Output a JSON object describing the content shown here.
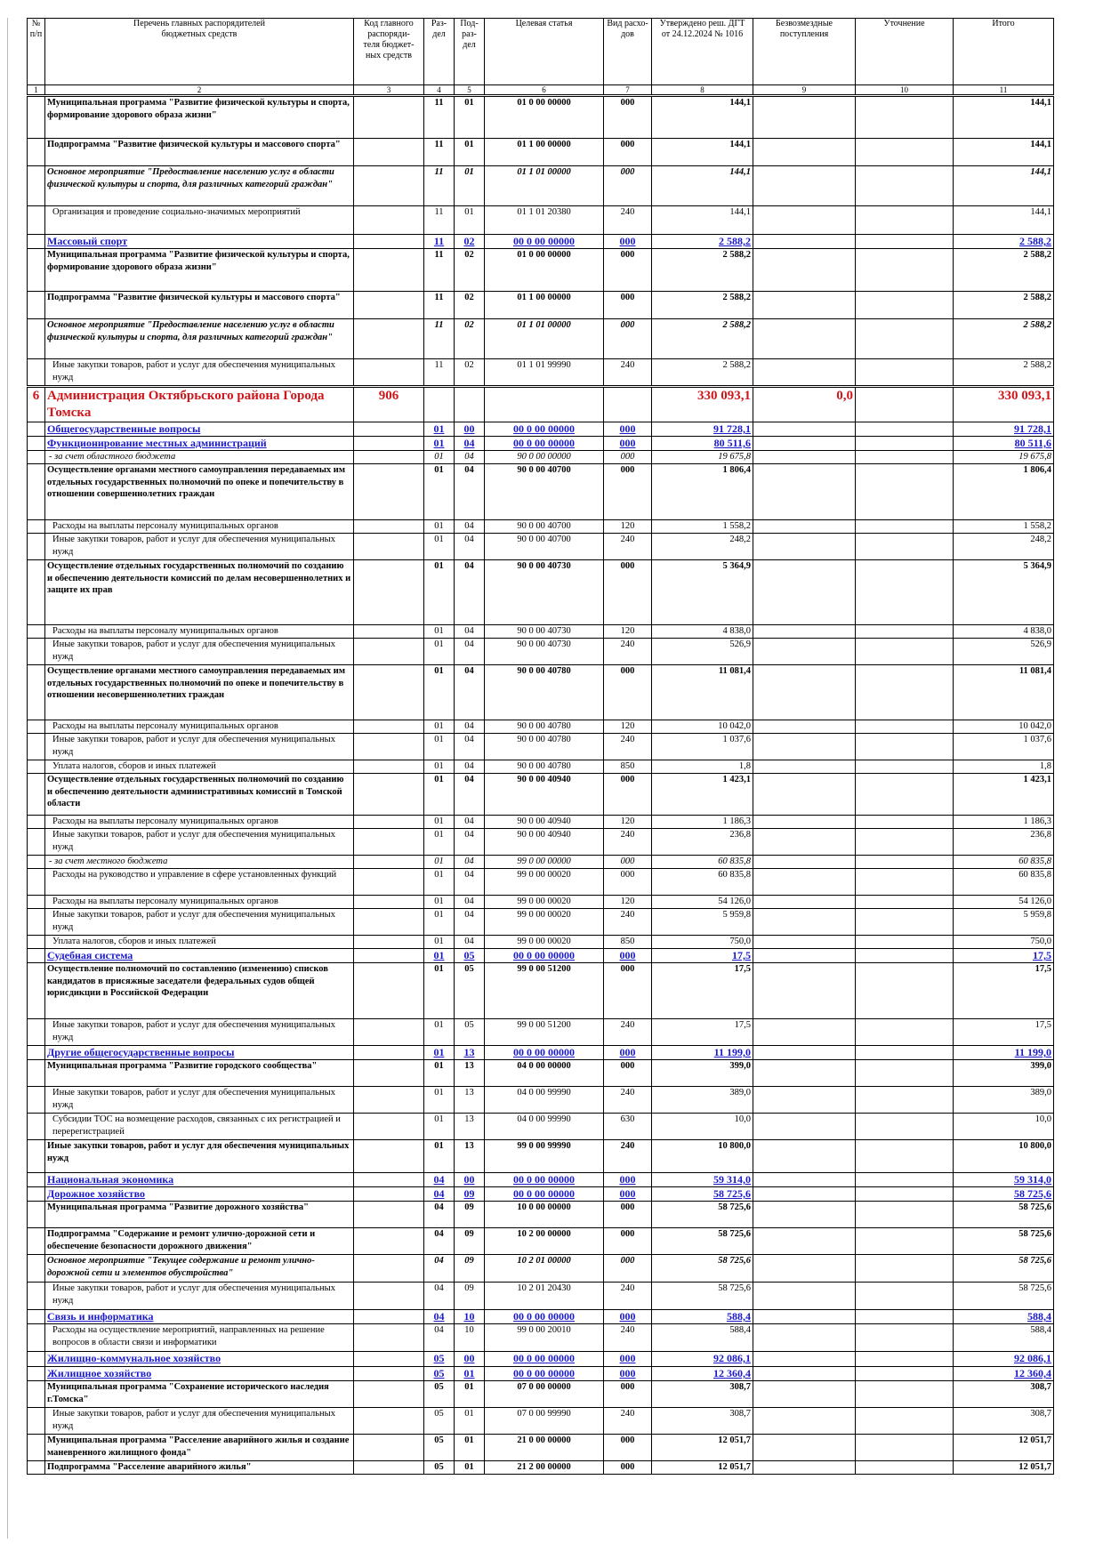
{
  "headers": [
    "№\nп/п",
    "Перечень главных распорядителей\nбюджетных средств",
    "Код главного\nраспоряди-\nтеля бюджет-\nных средств",
    "Раз-\nдел",
    "Под-\nраз-\nдел",
    "Целевая статья",
    "Вид расхо-\nдов",
    "Утверждено реш. ДГТ\nот 24.12.2024 № 1016",
    "Безвозмездные\nпоступления",
    "Уточнение",
    "Итого"
  ],
  "column_numbers": [
    "1",
    "2",
    "3",
    "4",
    "5",
    "6",
    "7",
    "8",
    "9",
    "10",
    "11"
  ],
  "rows": [
    {
      "style": "b",
      "h": 48,
      "cells": [
        "",
        "Муниципальная программа \"Развитие физической культуры и спорта, формирование здорового образа жизни\"",
        "",
        "11",
        "01",
        "01 0 00 00000",
        "000",
        "144,1",
        "",
        "",
        "144,1"
      ]
    },
    {
      "style": "b",
      "h": 31,
      "cells": [
        "",
        "Подпрограмма \"Развитие физической культуры и массового спорта\"",
        "",
        "11",
        "01",
        "01 1 00 00000",
        "000",
        "144,1",
        "",
        "",
        "144,1"
      ]
    },
    {
      "style": "bi",
      "h": 45,
      "cells": [
        "",
        "Основное мероприятие \"Предоставление населению услуг в области физической культуры и спорта, для различных категорий граждан\"",
        "",
        "11",
        "01",
        "01 1 01 00000",
        "000",
        "144,1",
        "",
        "",
        "144,1"
      ]
    },
    {
      "style": "n",
      "h": 32,
      "cells": [
        "",
        "Организация и проведение социально-значимых мероприятий",
        "",
        "11",
        "01",
        "01 1 01 20380",
        "240",
        "144,1",
        "",
        "",
        "144,1"
      ]
    },
    {
      "style": "s",
      "h": 16,
      "cells": [
        "",
        "Массовый спорт",
        "",
        "11",
        "02",
        "00 0 00 00000",
        "000",
        "2 588,2",
        "",
        "",
        "2 588,2"
      ]
    },
    {
      "style": "b",
      "h": 48,
      "cells": [
        "",
        "Муниципальная программа \"Развитие физической культуры и спорта, формирование здорового образа жизни\"",
        "",
        "11",
        "02",
        "01 0 00 00000",
        "000",
        "2 588,2",
        "",
        "",
        "2 588,2"
      ]
    },
    {
      "style": "b",
      "h": 31,
      "cells": [
        "",
        "Подпрограмма \"Развитие физической культуры и массового спорта\"",
        "",
        "11",
        "02",
        "01 1 00 00000",
        "000",
        "2 588,2",
        "",
        "",
        "2 588,2"
      ]
    },
    {
      "style": "bi",
      "h": 45,
      "cells": [
        "",
        "Основное мероприятие \"Предоставление населению услуг в области физической культуры и спорта, для различных категорий граждан\"",
        "",
        "11",
        "02",
        "01 1 01 00000",
        "000",
        "2 588,2",
        "",
        "",
        "2 588,2"
      ]
    },
    {
      "style": "n",
      "h": 31,
      "cells": [
        "",
        "Иные закупки товаров, работ и услуг для обеспечения муниципальных нужд",
        "",
        "11",
        "02",
        "01 1 01 99990",
        "240",
        "2 588,2",
        "",
        "",
        "2 588,2"
      ]
    },
    {
      "style": "g",
      "h": 40,
      "cells": [
        "6",
        "Администрация Октябрьского района Города Томска",
        "906",
        "",
        "",
        "",
        "",
        "330 093,1",
        "0,0",
        "",
        "330 093,1"
      ]
    },
    {
      "style": "s",
      "h": 16,
      "cells": [
        "",
        "Общегосударственные вопросы",
        "",
        "01",
        "00",
        "00 0 00 00000",
        "000",
        "91 728,1",
        "",
        "",
        "91 728,1"
      ]
    },
    {
      "style": "s",
      "h": 16,
      "cells": [
        "",
        "Функционирование местных администраций",
        "",
        "01",
        "04",
        "00 0 00 00000",
        "000",
        "80 511,6",
        "",
        "",
        "80 511,6"
      ]
    },
    {
      "style": "ni",
      "h": 15,
      "cells": [
        "",
        "- за счет областного бюджета",
        "",
        "01",
        "04",
        "90 0 00 00000",
        "000",
        "19 675,8",
        "",
        "",
        "19 675,8"
      ]
    },
    {
      "style": "b",
      "h": 63,
      "cells": [
        "",
        "Осуществление органами местного самоуправления передаваемых им отдельных государственных полномочий по опеке и попечительству в отношении совершеннолетних граждан",
        "",
        "01",
        "04",
        "90 0 00 40700",
        "000",
        "1 806,4",
        "",
        "",
        "1 806,4"
      ]
    },
    {
      "style": "n",
      "h": 15,
      "cells": [
        "",
        "Расходы на выплаты персоналу муниципальных органов",
        "",
        "01",
        "04",
        "90 0 00 40700",
        "120",
        "1 558,2",
        "",
        "",
        "1 558,2"
      ]
    },
    {
      "style": "n",
      "h": 30,
      "cells": [
        "",
        "Иные закупки товаров, работ и услуг для обеспечения муниципальных нужд",
        "",
        "01",
        "04",
        "90 0 00 40700",
        "240",
        "248,2",
        "",
        "",
        "248,2"
      ]
    },
    {
      "style": "b",
      "h": 73,
      "cells": [
        "",
        "Осуществление отдельных государственных полномочий по созданию и обеспечению деятельности комиссий по делам несовершеннолетних и защите их прав",
        "",
        "01",
        "04",
        "90 0 00 40730",
        "000",
        "5 364,9",
        "",
        "",
        "5 364,9"
      ]
    },
    {
      "style": "n",
      "h": 15,
      "cells": [
        "",
        "Расходы на выплаты персоналу муниципальных органов",
        "",
        "01",
        "04",
        "90 0 00 40730",
        "120",
        "4 838,0",
        "",
        "",
        "4 838,0"
      ]
    },
    {
      "style": "n",
      "h": 30,
      "cells": [
        "",
        "Иные закупки товаров, работ и услуг для обеспечения муниципальных нужд",
        "",
        "01",
        "04",
        "90 0 00 40730",
        "240",
        "526,9",
        "",
        "",
        "526,9"
      ]
    },
    {
      "style": "b",
      "h": 62,
      "cells": [
        "",
        "Осуществление органами местного самоуправления передаваемых им отдельных государственных полномочий по опеке и попечительству в отношении несовершеннолетних граждан",
        "",
        "01",
        "04",
        "90 0 00 40780",
        "000",
        "11 081,4",
        "",
        "",
        "11 081,4"
      ]
    },
    {
      "style": "n",
      "h": 15,
      "cells": [
        "",
        "Расходы на выплаты персоналу муниципальных органов",
        "",
        "01",
        "04",
        "90 0 00 40780",
        "120",
        "10 042,0",
        "",
        "",
        "10 042,0"
      ]
    },
    {
      "style": "n",
      "h": 30,
      "cells": [
        "",
        "Иные закупки товаров, работ и услуг для обеспечения муниципальных нужд",
        "",
        "01",
        "04",
        "90 0 00 40780",
        "240",
        "1 037,6",
        "",
        "",
        "1 037,6"
      ]
    },
    {
      "style": "n",
      "h": 15,
      "cells": [
        "",
        "Уплата налогов, сборов и иных платежей",
        "",
        "01",
        "04",
        "90 0 00 40780",
        "850",
        "1,8",
        "",
        "",
        "1,8"
      ]
    },
    {
      "style": "b",
      "h": 47,
      "cells": [
        "",
        "Осуществление отдельных государственных полномочий по созданию и обеспечению деятельности административных комиссий в Томской области",
        "",
        "01",
        "04",
        "90 0 00 40940",
        "000",
        "1 423,1",
        "",
        "",
        "1 423,1"
      ]
    },
    {
      "style": "n",
      "h": 15,
      "cells": [
        "",
        "Расходы на выплаты персоналу муниципальных органов",
        "",
        "01",
        "04",
        "90 0 00 40940",
        "120",
        "1 186,3",
        "",
        "",
        "1 186,3"
      ]
    },
    {
      "style": "n",
      "h": 30,
      "cells": [
        "",
        "Иные закупки товаров, работ и услуг для обеспечения муниципальных нужд",
        "",
        "01",
        "04",
        "90 0 00 40940",
        "240",
        "236,8",
        "",
        "",
        "236,8"
      ]
    },
    {
      "style": "ni",
      "h": 15,
      "cells": [
        "",
        "- за счет местного бюджета",
        "",
        "01",
        "04",
        "99 0 00 00000",
        "000",
        "60 835,8",
        "",
        "",
        "60 835,8"
      ]
    },
    {
      "style": "n",
      "h": 30,
      "cells": [
        "",
        "Расходы на руководство и управление в сфере установленных функций",
        "",
        "01",
        "04",
        "99 0 00 00020",
        "000",
        "60 835,8",
        "",
        "",
        "60 835,8"
      ]
    },
    {
      "style": "n",
      "h": 15,
      "cells": [
        "",
        "Расходы на выплаты персоналу муниципальных органов",
        "",
        "01",
        "04",
        "99 0 00 00020",
        "120",
        "54 126,0",
        "",
        "",
        "54 126,0"
      ]
    },
    {
      "style": "n",
      "h": 30,
      "cells": [
        "",
        "Иные закупки товаров, работ и услуг для обеспечения муниципальных нужд",
        "",
        "01",
        "04",
        "99 0 00 00020",
        "240",
        "5 959,8",
        "",
        "",
        "5 959,8"
      ]
    },
    {
      "style": "n",
      "h": 15,
      "cells": [
        "",
        "Уплата налогов, сборов и иных платежей",
        "",
        "01",
        "04",
        "99 0 00 00020",
        "850",
        "750,0",
        "",
        "",
        "750,0"
      ]
    },
    {
      "style": "s",
      "h": 16,
      "cells": [
        "",
        "Судебная система",
        "",
        "01",
        "05",
        "00 0 00 00000",
        "000",
        "17,5",
        "",
        "",
        "17,5"
      ]
    },
    {
      "style": "b",
      "h": 63,
      "cells": [
        "",
        "Осуществление полномочий по составлению (изменению) списков кандидатов в присяжные заседатели федеральных судов общей юрисдикции в Российской Федерации",
        "",
        "01",
        "05",
        "99 0 00 51200",
        "000",
        "17,5",
        "",
        "",
        "17,5"
      ]
    },
    {
      "style": "n",
      "h": 30,
      "cells": [
        "",
        "Иные закупки товаров, работ и услуг для обеспечения муниципальных нужд",
        "",
        "01",
        "05",
        "99 0 00 51200",
        "240",
        "17,5",
        "",
        "",
        "17,5"
      ]
    },
    {
      "style": "s",
      "h": 16,
      "cells": [
        "",
        "Другие общегосударственные вопросы",
        "",
        "01",
        "13",
        "00 0 00 00000",
        "000",
        "11 199,0",
        "",
        "",
        "11 199,0"
      ]
    },
    {
      "style": "b",
      "h": 30,
      "cells": [
        "",
        "Муниципальная программа \"Развитие городского сообщества\"",
        "",
        "01",
        "13",
        "04 0 00 00000",
        "000",
        "399,0",
        "",
        "",
        "399,0"
      ]
    },
    {
      "style": "n",
      "h": 30,
      "cells": [
        "",
        "Иные закупки товаров, работ и услуг для обеспечения муниципальных нужд",
        "",
        "01",
        "13",
        "04 0 00 99990",
        "240",
        "389,0",
        "",
        "",
        "389,0"
      ]
    },
    {
      "style": "n",
      "h": 30,
      "cells": [
        "",
        "Субсидии ТОС на возмещение расходов, связанных с их регистрацией и перерегистрацией",
        "",
        "01",
        "13",
        "04 0 00 99990",
        "630",
        "10,0",
        "",
        "",
        "10,0"
      ]
    },
    {
      "style": "b",
      "h": 37,
      "cells": [
        "",
        "Иные закупки товаров, работ и услуг для обеспечения муниципальных нужд",
        "",
        "01",
        "13",
        "99 0 00 99990",
        "240",
        "10 800,0",
        "",
        "",
        "10 800,0"
      ]
    },
    {
      "style": "s",
      "h": 16,
      "cells": [
        "",
        "Национальная экономика",
        "",
        "04",
        "00",
        "00 0 00 00000",
        "000",
        "59 314,0",
        "",
        "",
        "59 314,0"
      ]
    },
    {
      "style": "s",
      "h": 16,
      "cells": [
        "",
        "Дорожное хозяйство",
        "",
        "04",
        "09",
        "00 0 00 00000",
        "000",
        "58 725,6",
        "",
        "",
        "58 725,6"
      ]
    },
    {
      "style": "b",
      "h": 30,
      "cells": [
        "",
        "Муниципальная программа \"Развитие дорожного хозяйства\"",
        "",
        "04",
        "09",
        "10 0 00 00000",
        "000",
        "58 725,6",
        "",
        "",
        "58 725,6"
      ]
    },
    {
      "style": "b",
      "h": 30,
      "cells": [
        "",
        "Подпрограмма \"Содержание и ремонт улично-дорожной сети и обеспечение безопасности дорожного движения\"",
        "",
        "04",
        "09",
        "10 2 00 00000",
        "000",
        "58 725,6",
        "",
        "",
        "58 725,6"
      ]
    },
    {
      "style": "bi",
      "h": 31,
      "cells": [
        "",
        "Основное мероприятие \"Текущее содержание и ремонт улично-дорожной сети и элементов обустройства\"",
        "",
        "04",
        "09",
        "10 2 01 00000",
        "000",
        "58 725,6",
        "",
        "",
        "58 725,6"
      ]
    },
    {
      "style": "n",
      "h": 31,
      "cells": [
        "",
        "Иные закупки товаров, работ и услуг для обеспечения муниципальных нужд",
        "",
        "04",
        "09",
        "10 2 01 20430",
        "240",
        "58 725,6",
        "",
        "",
        "58 725,6"
      ]
    },
    {
      "style": "s",
      "h": 16,
      "cells": [
        "",
        "Связь и информатика",
        "",
        "04",
        "10",
        "00 0 00 00000",
        "000",
        "588,4",
        "",
        "",
        "588,4"
      ]
    },
    {
      "style": "n",
      "h": 31,
      "cells": [
        "",
        "Расходы на осуществление мероприятий, направленных на решение вопросов в области связи и информатики",
        "",
        "04",
        "10",
        "99 0 00 20010",
        "240",
        "588,4",
        "",
        "",
        "588,4"
      ]
    },
    {
      "style": "s",
      "h": 17,
      "cells": [
        "",
        "Жилищно-коммунальное хозяйство",
        "",
        "05",
        "00",
        "00 0 00 00000",
        "000",
        "92 086,1",
        "",
        "",
        "92 086,1"
      ]
    },
    {
      "style": "s",
      "h": 16,
      "cells": [
        "",
        "Жилищное хозяйство",
        "",
        "05",
        "01",
        "00 0 00 00000",
        "000",
        "12 360,4",
        "",
        "",
        "12 360,4"
      ]
    },
    {
      "style": "b",
      "h": 30,
      "cells": [
        "",
        "Муниципальная программа \"Сохранение исторического наследия г.Томска\"",
        "",
        "05",
        "01",
        "07 0 00 00000",
        "000",
        "308,7",
        "",
        "",
        "308,7"
      ]
    },
    {
      "style": "n",
      "h": 30,
      "cells": [
        "",
        "Иные закупки товаров, работ и услуг для обеспечения муниципальных нужд",
        "",
        "05",
        "01",
        "07 0 00 99990",
        "240",
        "308,7",
        "",
        "",
        "308,7"
      ]
    },
    {
      "style": "b",
      "h": 30,
      "cells": [
        "",
        "Муниципальная программа \"Расселение аварийного жилья и создание маневренного жилищного фонда\"",
        "",
        "05",
        "01",
        "21 0 00 00000",
        "000",
        "12 051,7",
        "",
        "",
        "12 051,7"
      ]
    },
    {
      "style": "b",
      "h": 15,
      "cells": [
        "",
        "Подпрограмма \"Расселение аварийного жилья\"",
        "",
        "05",
        "01",
        "21 2 00 00000",
        "000",
        "12 051,7",
        "",
        "",
        "12 051,7"
      ]
    }
  ]
}
